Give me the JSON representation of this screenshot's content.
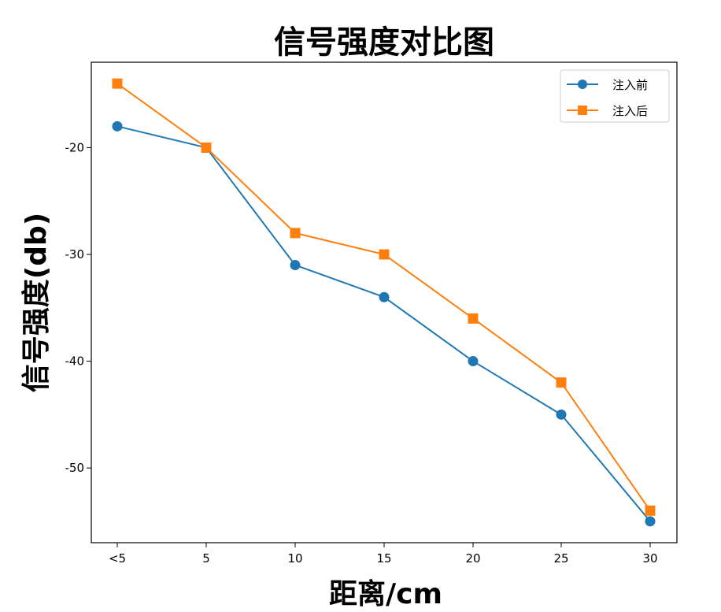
{
  "chart_data": {
    "type": "line",
    "title": "信号强度对比图",
    "xlabel": "距离/cm",
    "ylabel": "信号强度(db)",
    "categories": [
      "<5",
      "5",
      "10",
      "15",
      "20",
      "25",
      "30"
    ],
    "series": [
      {
        "name": "注入前",
        "values": [
          -18,
          -20,
          -31,
          -34,
          -40,
          -45,
          -55
        ],
        "color": "#1f77b4",
        "marker": "circle"
      },
      {
        "name": "注入后",
        "values": [
          -14,
          -20,
          -28,
          -30,
          -36,
          -42,
          -54
        ],
        "color": "#ff7f0e",
        "marker": "square"
      }
    ],
    "ylim": [
      -57,
      -12
    ],
    "yticks": [
      -20,
      -30,
      -40,
      -50
    ],
    "grid": false,
    "legend_position": "top-right"
  }
}
